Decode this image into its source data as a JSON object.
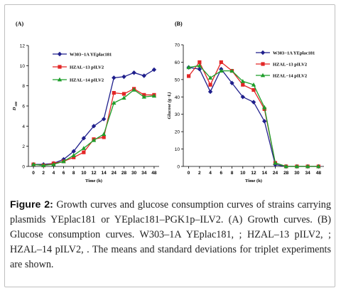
{
  "figure": {
    "caption_label": "Figure 2:",
    "caption_text": " Growth curves and glucose consumption curves of strains carrying plasmids YEplac181 or YEplac181–PGK1p–ILV2. (A) Growth curves. (B) Glucose consumption curves. W303–1A YEplac181, ; HZAL–13 pILV2, ; HZAL–14 pILV2, . The means and standard deviations for triplet experiments are shown."
  },
  "chart_data": [
    {
      "type": "line",
      "panel_label": "(A)",
      "xlabel": "Time (h)",
      "ylabel": "D",
      "ylabel_sub": "600",
      "categories": [
        "0",
        "2",
        "4",
        "6",
        "8",
        "10",
        "12",
        "14",
        "24",
        "28",
        "30",
        "34",
        "48"
      ],
      "ylim": [
        0,
        12
      ],
      "yticks": [
        "0",
        "2",
        "4",
        "6",
        "8",
        "10",
        "12"
      ],
      "legend_position": "top-left",
      "series": [
        {
          "name": "W303−1A YEplac181",
          "color": "#1f1f8c",
          "marker": "diamond",
          "values": [
            0.2,
            0.2,
            0.3,
            0.7,
            1.5,
            2.8,
            4.0,
            4.7,
            8.8,
            8.9,
            9.3,
            9.0,
            9.6
          ]
        },
        {
          "name": "HZAL−13 pILV2",
          "color": "#e32626",
          "marker": "square",
          "values": [
            0.2,
            0.1,
            0.3,
            0.5,
            0.9,
            1.4,
            2.7,
            2.9,
            7.3,
            7.2,
            7.7,
            7.1,
            7.1
          ]
        },
        {
          "name": "HZAL−14 pILV2",
          "color": "#1e9e2a",
          "marker": "triangle",
          "values": [
            0.2,
            0.1,
            0.2,
            0.5,
            1.1,
            1.8,
            2.6,
            3.2,
            6.3,
            6.8,
            7.6,
            6.9,
            7.0
          ]
        }
      ]
    },
    {
      "type": "line",
      "panel_label": "(B)",
      "xlabel": "Time (h)",
      "ylabel": "Glucose (g ·L)",
      "categories": [
        "0",
        "2",
        "4",
        "6",
        "8",
        "10",
        "12",
        "14",
        "24",
        "28",
        "30",
        "34",
        "48"
      ],
      "ylim": [
        0,
        70
      ],
      "yticks": [
        "0",
        "10",
        "20",
        "30",
        "40",
        "50",
        "60",
        "70"
      ],
      "legend_position": "top-right",
      "series": [
        {
          "name": "W303−1A YEplac181",
          "color": "#1f1f8c",
          "marker": "diamond",
          "values": [
            57,
            56,
            43,
            56,
            48,
            40,
            37,
            26,
            1,
            0,
            0,
            0,
            0
          ]
        },
        {
          "name": "HZAL−13 pILV2",
          "color": "#e32626",
          "marker": "square",
          "values": [
            52,
            60,
            47,
            60,
            55,
            47,
            44,
            33,
            2,
            0,
            0,
            0,
            0
          ]
        },
        {
          "name": "HZAL−14 pILV2",
          "color": "#1e9e2a",
          "marker": "triangle",
          "values": [
            57,
            58,
            51,
            55,
            55,
            49,
            47,
            34,
            2,
            0,
            0,
            0,
            0
          ]
        }
      ]
    }
  ]
}
